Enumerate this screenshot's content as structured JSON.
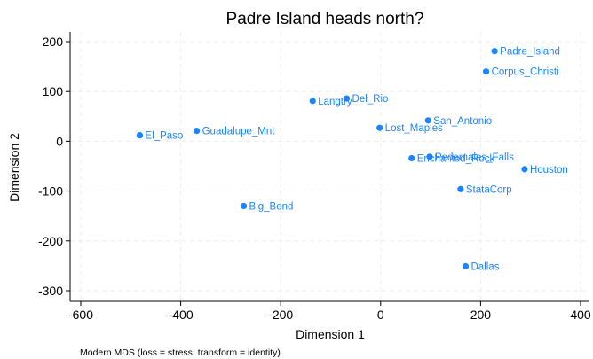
{
  "chart_data": {
    "type": "scatter",
    "title": "Padre Island heads north?",
    "xlabel": "Dimension 1",
    "ylabel": "Dimension 2",
    "note": "Modern MDS (loss = stress; transform = identity)",
    "xlim": [
      -600,
      400
    ],
    "ylim": [
      -300,
      200
    ],
    "xticks": [
      -600,
      -400,
      -200,
      0,
      200,
      400
    ],
    "yticks": [
      -300,
      -200,
      -100,
      0,
      100,
      200
    ],
    "grid": true,
    "colors": {
      "point": "#1a85ff",
      "label": "#1a85ff",
      "grid": "#eeeeee"
    },
    "points": [
      {
        "name": "Padre_Island",
        "x": 228,
        "y": 181
      },
      {
        "name": "Corpus_Christi",
        "x": 211,
        "y": 140
      },
      {
        "name": "Del_Rio",
        "x": -68,
        "y": 86
      },
      {
        "name": "Langtry",
        "x": -136,
        "y": 81
      },
      {
        "name": "San_Antonio",
        "x": 95,
        "y": 42
      },
      {
        "name": "Lost_Maples",
        "x": -2,
        "y": 27
      },
      {
        "name": "Guadalupe_Mnt",
        "x": -368,
        "y": 21
      },
      {
        "name": "El_Paso",
        "x": -482,
        "y": 12
      },
      {
        "name": "Pedernales_Falls",
        "x": 98,
        "y": -31
      },
      {
        "name": "Enchanted_Rock",
        "x": 62,
        "y": -34
      },
      {
        "name": "Houston",
        "x": 288,
        "y": -56
      },
      {
        "name": "StataCorp",
        "x": 160,
        "y": -96
      },
      {
        "name": "Big_Bend",
        "x": -274,
        "y": -130
      },
      {
        "name": "Dallas",
        "x": 170,
        "y": -251
      }
    ]
  }
}
